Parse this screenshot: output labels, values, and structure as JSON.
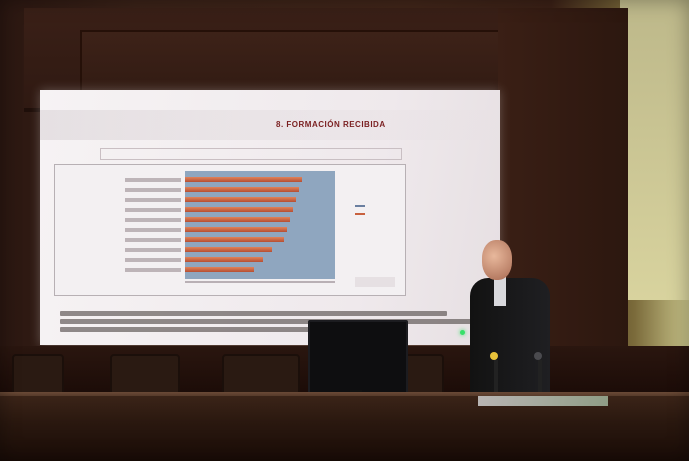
{
  "scene": {
    "description_colors": {
      "wood": "#3a2016",
      "screen": "#f1ecee",
      "plot_bg": "#8fa6bf",
      "bar": "#c8613f",
      "title_red": "#7a1f20"
    }
  },
  "slide": {
    "title": "8. FORMACIÓN RECIBIDA",
    "bars": [
      0.78,
      0.76,
      0.74,
      0.72,
      0.7,
      0.68,
      0.66,
      0.58,
      0.52,
      0.46
    ]
  }
}
